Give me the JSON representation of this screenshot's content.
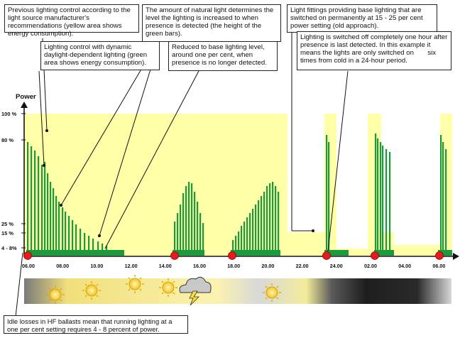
{
  "axis": {
    "y_title": "Power",
    "y_ticks": [
      "100 %",
      "80 %",
      "25 %",
      "15 %",
      "4 - 8%"
    ],
    "x_ticks": [
      "06.00",
      "08.00",
      "10.00",
      "12.00",
      "14.00",
      "16.00",
      "18.00",
      "20.00",
      "22.00",
      "24.00",
      "02.00",
      "04.00",
      "06.00"
    ]
  },
  "annotations": {
    "previous_control": "Previous lighting control according to the light source manufacturer's recommendations (yellow area shows energy consumption).",
    "daylight_dependent": "Lighting control with dynamic daylight-dependent lighting (green area shows energy consumption).",
    "natural_light": "The amount of natural light determines the level the lighting is increased to when presence is detected (the height of the green bars).",
    "reduced_base": "Reduced to base lighting level, around one per cent, when presence is no longer detected.",
    "permanent_base": "Light fittings providing base lighting that are switched on permanently at 15 - 25 per cent power setting (old approach).",
    "switched_off_a": "Lighting is switched off completely one hour after presence is last detected. In this example it means the lights are only switched on",
    "switched_off_b": "six times from cold in a 24-hour period.",
    "idle_losses": "Idle losses in HF ballasts mean that running lighting at a one per cent setting requires 4 - 8 percent of power."
  },
  "colors": {
    "yellow_area": "#FFFFA8",
    "green_bars": "#1A9A3A",
    "switch_marker": "#E21D1D",
    "axis": "#111111"
  },
  "icons": [
    "sun-icon",
    "sun-icon",
    "sun-icon",
    "sun-icon",
    "cloud-lightning-icon",
    "sun-icon",
    "moon-icon",
    "moon-icon",
    "moon-icon",
    "moon-icon"
  ]
}
